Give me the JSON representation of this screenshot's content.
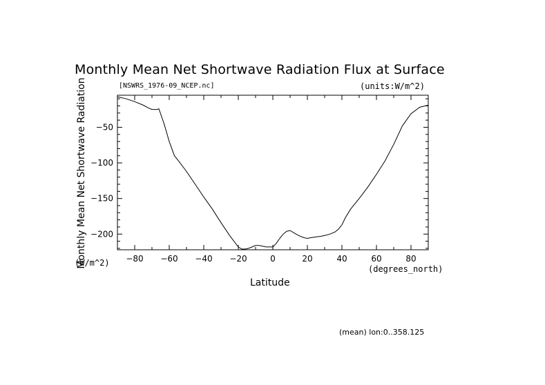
{
  "chart_data": {
    "type": "line",
    "title": "Monthly Mean Net Shortwave Radiation Flux at Surface",
    "file_label": "[NSWRS_1976-09_NCEP.nc]",
    "units_label": "(units:W/m^2)",
    "xlabel": "Latitude",
    "x_units": "(degrees_north)",
    "ylabel": "Monthly Mean Net Shortwave Radiation",
    "y_units": "(W/m^2)",
    "footer_note": "(mean) lon:0..358.125",
    "xlim": [
      -90,
      90
    ],
    "ylim": [
      -222,
      -5
    ],
    "x_ticks": [
      -80,
      -60,
      -40,
      -20,
      0,
      20,
      40,
      60,
      80
    ],
    "y_ticks": [
      -50,
      -100,
      -150,
      -200
    ],
    "grid": false,
    "series": [
      {
        "x": [
          -90,
          -85,
          -80,
          -75,
          -72,
          -70,
          -67,
          -66,
          -63,
          -60,
          -57,
          -55,
          -50,
          -45,
          -40,
          -35,
          -30,
          -25,
          -20,
          -18,
          -16,
          -14,
          -12,
          -10,
          -8,
          -6,
          -4,
          -2,
          0,
          2,
          4,
          6,
          8,
          10,
          12,
          15,
          18,
          20,
          22,
          25,
          28,
          30,
          33,
          36,
          38,
          40,
          42,
          45,
          50,
          55,
          60,
          65,
          70,
          75,
          80,
          85,
          88,
          90
        ],
        "y": [
          -7,
          -10,
          -14,
          -19,
          -23,
          -25,
          -25,
          -24,
          -45,
          -70,
          -90,
          -96,
          -112,
          -130,
          -148,
          -165,
          -184,
          -202,
          -218,
          -221,
          -221,
          -220,
          -218,
          -216,
          -216,
          -217,
          -218,
          -218,
          -218,
          -213,
          -206,
          -200,
          -196,
          -195,
          -198,
          -202,
          -205,
          -206,
          -205,
          -204,
          -203,
          -202,
          -200,
          -197,
          -193,
          -187,
          -177,
          -165,
          -150,
          -134,
          -116,
          -97,
          -74,
          -48,
          -31,
          -22,
          -20,
          -19
        ]
      }
    ]
  }
}
